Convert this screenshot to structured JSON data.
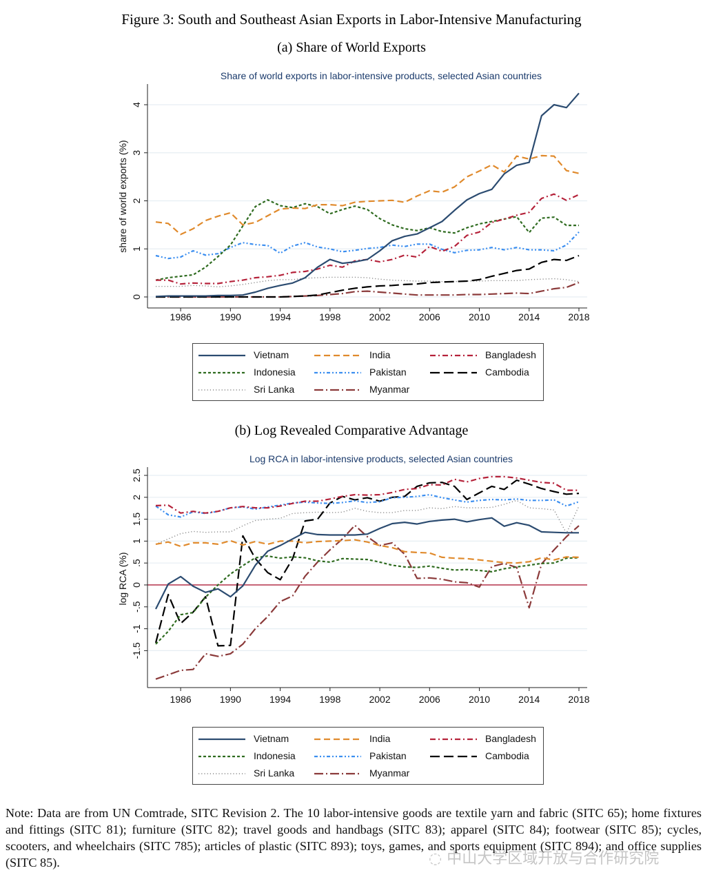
{
  "figure_title": "Figure 3: South and Southeast Asian Exports in Labor-Intensive Manufacturing",
  "panels": {
    "a": {
      "caption": "(a) Share of World Exports"
    },
    "b": {
      "caption": "(b) Log Revealed Comparative Advantage"
    }
  },
  "series_styles": {
    "Vietnam": {
      "color": "#2b4b70",
      "dash": "solid"
    },
    "India": {
      "color": "#e08a2c",
      "dash": "dash"
    },
    "Bangladesh": {
      "color": "#b5223a",
      "dash": "dashdot"
    },
    "Indonesia": {
      "color": "#2e6b1f",
      "dash": "shortdash"
    },
    "Pakistan": {
      "color": "#3b8ef0",
      "dash": "dashdotdot"
    },
    "Cambodia": {
      "color": "#000000",
      "dash": "longdash"
    },
    "Sri Lanka": {
      "color": "#888888",
      "dash": "dot"
    },
    "Myanmar": {
      "color": "#8b3a3a",
      "dash": "longdashdot"
    }
  },
  "legend_order": [
    "Vietnam",
    "India",
    "Bangladesh",
    "Indonesia",
    "Pakistan",
    "Cambodia",
    "Sri Lanka",
    "Myanmar"
  ],
  "note": "Note: Data are from UN Comtrade, SITC Revision 2. The 10 labor-intensive goods are textile yarn and fabric (SITC 65); home fixtures and fittings (SITC 81); furniture (SITC 82); travel goods and handbags (SITC 83); apparel (SITC 84); footwear (SITC 85); cycles, scooters, and wheelchairs (SITC 785); articles of plastic (SITC 893); toys, games, and sports equipment (SITC 894); and office supplies (SITC 85).",
  "watermark": "中山大学区域开放与合作研究院",
  "chart_data": [
    {
      "type": "line",
      "title": "Share of world exports in labor-intensive products, selected Asian countries",
      "xlabel": "",
      "ylabel": "share of world exports (%)",
      "x": [
        1984,
        1985,
        1986,
        1987,
        1988,
        1989,
        1990,
        1991,
        1992,
        1993,
        1994,
        1995,
        1996,
        1997,
        1998,
        1999,
        2000,
        2001,
        2002,
        2003,
        2004,
        2005,
        2006,
        2007,
        2008,
        2009,
        2010,
        2011,
        2012,
        2013,
        2014,
        2015,
        2016,
        2017,
        2018
      ],
      "xticks": [
        1986,
        1990,
        1994,
        1998,
        2002,
        2006,
        2010,
        2014,
        2018
      ],
      "yticks": [
        0,
        1,
        2,
        3,
        4
      ],
      "ylim": [
        -0.1,
        4.4
      ],
      "xlim": [
        1983.3,
        2018.6
      ],
      "grid": true,
      "legend_position": "bottom",
      "series": [
        {
          "name": "Vietnam",
          "values": [
            0.01,
            0.02,
            0.02,
            0.02,
            0.02,
            0.03,
            0.03,
            0.04,
            0.1,
            0.18,
            0.24,
            0.29,
            0.4,
            0.62,
            0.78,
            0.7,
            0.73,
            0.78,
            0.96,
            1.17,
            1.26,
            1.31,
            1.44,
            1.57,
            1.8,
            2.02,
            2.15,
            2.24,
            2.56,
            2.74,
            2.8,
            3.77,
            4.0,
            3.94,
            4.24
          ]
        },
        {
          "name": "India",
          "values": [
            1.56,
            1.53,
            1.3,
            1.42,
            1.59,
            1.68,
            1.75,
            1.5,
            1.55,
            1.69,
            1.83,
            1.85,
            1.84,
            1.92,
            1.92,
            1.9,
            1.97,
            1.99,
            2.0,
            2.01,
            1.97,
            2.1,
            2.21,
            2.18,
            2.29,
            2.5,
            2.62,
            2.75,
            2.6,
            2.93,
            2.87,
            2.94,
            2.93,
            2.63,
            2.57
          ]
        },
        {
          "name": "Bangladesh",
          "values": [
            0.35,
            0.35,
            0.27,
            0.29,
            0.28,
            0.28,
            0.32,
            0.35,
            0.4,
            0.42,
            0.45,
            0.51,
            0.53,
            0.58,
            0.66,
            0.62,
            0.75,
            0.78,
            0.73,
            0.78,
            0.87,
            0.83,
            1.05,
            0.95,
            1.05,
            1.28,
            1.35,
            1.55,
            1.62,
            1.7,
            1.76,
            2.05,
            2.14,
            2.01,
            2.13
          ]
        },
        {
          "name": "Indonesia",
          "values": [
            0.35,
            0.4,
            0.43,
            0.46,
            0.62,
            0.84,
            1.08,
            1.48,
            1.88,
            2.02,
            1.9,
            1.86,
            1.94,
            1.88,
            1.73,
            1.82,
            1.89,
            1.82,
            1.63,
            1.5,
            1.42,
            1.38,
            1.44,
            1.36,
            1.33,
            1.44,
            1.52,
            1.57,
            1.62,
            1.67,
            1.34,
            1.64,
            1.66,
            1.49,
            1.49
          ]
        },
        {
          "name": "Pakistan",
          "values": [
            0.86,
            0.8,
            0.83,
            0.96,
            0.87,
            0.9,
            1.03,
            1.13,
            1.09,
            1.07,
            0.91,
            1.06,
            1.13,
            1.04,
            1.0,
            0.94,
            0.97,
            1.01,
            1.03,
            1.08,
            1.05,
            1.1,
            1.1,
            0.99,
            0.92,
            0.97,
            0.98,
            1.03,
            0.98,
            1.03,
            0.98,
            0.98,
            0.96,
            1.08,
            1.35
          ]
        },
        {
          "name": "Cambodia",
          "values": [
            0.0,
            0.0,
            0.0,
            0.0,
            0.0,
            0.0,
            0.0,
            0.0,
            0.0,
            0.0,
            0.0,
            0.01,
            0.02,
            0.04,
            0.09,
            0.14,
            0.18,
            0.21,
            0.23,
            0.24,
            0.26,
            0.27,
            0.3,
            0.31,
            0.32,
            0.33,
            0.36,
            0.43,
            0.49,
            0.55,
            0.58,
            0.72,
            0.78,
            0.76,
            0.86
          ]
        },
        {
          "name": "Sri Lanka",
          "values": [
            0.22,
            0.22,
            0.22,
            0.24,
            0.23,
            0.21,
            0.23,
            0.26,
            0.3,
            0.34,
            0.36,
            0.36,
            0.39,
            0.4,
            0.41,
            0.41,
            0.41,
            0.4,
            0.37,
            0.35,
            0.34,
            0.33,
            0.33,
            0.32,
            0.32,
            0.33,
            0.33,
            0.34,
            0.34,
            0.34,
            0.36,
            0.37,
            0.38,
            0.36,
            0.32
          ]
        },
        {
          "name": "Myanmar",
          "values": [
            0.0,
            0.0,
            0.0,
            0.0,
            0.0,
            0.0,
            0.0,
            0.0,
            0.0,
            0.0,
            0.0,
            0.01,
            0.02,
            0.03,
            0.05,
            0.07,
            0.11,
            0.12,
            0.1,
            0.08,
            0.06,
            0.04,
            0.04,
            0.04,
            0.04,
            0.05,
            0.05,
            0.06,
            0.07,
            0.08,
            0.07,
            0.12,
            0.17,
            0.2,
            0.3
          ]
        }
      ]
    },
    {
      "type": "line",
      "title": "Log RCA in labor-intensive products, selected Asian countries",
      "xlabel": "",
      "ylabel": "log RCA (%)",
      "x": [
        1984,
        1985,
        1986,
        1987,
        1988,
        1989,
        1990,
        1991,
        1992,
        1993,
        1994,
        1995,
        1996,
        1997,
        1998,
        1999,
        2000,
        2001,
        2002,
        2003,
        2004,
        2005,
        2006,
        2007,
        2008,
        2009,
        2010,
        2011,
        2012,
        2013,
        2014,
        2015,
        2016,
        2017,
        2018
      ],
      "xticks": [
        1986,
        1990,
        1994,
        1998,
        2002,
        2006,
        2010,
        2014,
        2018
      ],
      "yticks": [
        -1.5,
        -1,
        -0.5,
        0,
        0.5,
        1,
        1.5,
        2,
        2.5
      ],
      "ytick_labels": [
        "-1.5",
        "-1",
        "-.5",
        "0",
        ".5",
        "1",
        "1.5",
        "2",
        "2.5"
      ],
      "ylim": [
        -2.35,
        2.7
      ],
      "xlim": [
        1983.3,
        2018.6
      ],
      "grid": true,
      "reference_line": {
        "y": 0,
        "color": "#b5334a"
      },
      "legend_position": "bottom",
      "series": [
        {
          "name": "Vietnam",
          "values": [
            -0.55,
            0.02,
            0.19,
            -0.03,
            -0.17,
            -0.09,
            -0.27,
            -0.02,
            0.45,
            0.77,
            0.9,
            1.05,
            1.2,
            1.15,
            1.14,
            1.14,
            1.14,
            1.16,
            1.29,
            1.4,
            1.43,
            1.39,
            1.45,
            1.48,
            1.5,
            1.44,
            1.49,
            1.53,
            1.34,
            1.42,
            1.36,
            1.21,
            1.2,
            1.19,
            1.19
          ]
        },
        {
          "name": "India",
          "values": [
            0.93,
            0.98,
            0.88,
            0.96,
            0.96,
            0.93,
            1.01,
            0.91,
            0.99,
            0.93,
            1.0,
            1.0,
            0.96,
            0.99,
            1.0,
            1.01,
            1.03,
            0.98,
            0.9,
            0.85,
            0.76,
            0.74,
            0.73,
            0.63,
            0.61,
            0.6,
            0.57,
            0.54,
            0.51,
            0.5,
            0.53,
            0.62,
            0.57,
            0.64,
            0.63
          ]
        },
        {
          "name": "Bangladesh",
          "values": [
            1.81,
            1.82,
            1.64,
            1.68,
            1.64,
            1.68,
            1.76,
            1.79,
            1.76,
            1.76,
            1.8,
            1.86,
            1.91,
            1.91,
            1.96,
            2.02,
            2.06,
            2.05,
            2.06,
            2.11,
            2.18,
            2.2,
            2.29,
            2.28,
            2.41,
            2.35,
            2.43,
            2.47,
            2.47,
            2.44,
            2.39,
            2.34,
            2.32,
            2.16,
            2.16
          ]
        },
        {
          "name": "Indonesia",
          "values": [
            -1.35,
            -1.06,
            -0.68,
            -0.63,
            -0.28,
            0.0,
            0.25,
            0.44,
            0.62,
            0.66,
            0.61,
            0.64,
            0.62,
            0.55,
            0.52,
            0.6,
            0.59,
            0.58,
            0.52,
            0.45,
            0.41,
            0.4,
            0.43,
            0.38,
            0.34,
            0.35,
            0.33,
            0.3,
            0.37,
            0.41,
            0.45,
            0.49,
            0.5,
            0.61,
            0.62
          ]
        },
        {
          "name": "Pakistan",
          "values": [
            1.8,
            1.6,
            1.55,
            1.67,
            1.63,
            1.68,
            1.76,
            1.78,
            1.73,
            1.78,
            1.82,
            1.87,
            1.89,
            1.87,
            1.86,
            1.88,
            1.92,
            1.88,
            1.9,
            1.99,
            2.0,
            2.02,
            2.06,
            1.99,
            1.94,
            1.89,
            1.93,
            1.95,
            1.94,
            1.96,
            1.93,
            1.93,
            1.94,
            1.8,
            1.9
          ]
        },
        {
          "name": "Cambodia",
          "values": [
            -1.32,
            -0.22,
            -0.88,
            -0.62,
            -0.27,
            -1.39,
            -1.38,
            1.12,
            0.6,
            0.28,
            0.12,
            0.6,
            1.46,
            1.5,
            1.87,
            2.02,
            1.94,
            1.99,
            1.91,
            2.0,
            2.02,
            2.25,
            2.33,
            2.34,
            2.25,
            1.95,
            2.1,
            2.25,
            2.18,
            2.39,
            2.3,
            2.2,
            2.13,
            2.07,
            2.09
          ]
        },
        {
          "name": "Sri Lanka",
          "values": [
            0.93,
            1.05,
            1.17,
            1.22,
            1.2,
            1.21,
            1.21,
            1.35,
            1.47,
            1.5,
            1.52,
            1.63,
            1.65,
            1.66,
            1.65,
            1.66,
            1.75,
            1.68,
            1.65,
            1.65,
            1.7,
            1.7,
            1.76,
            1.74,
            1.79,
            1.76,
            1.76,
            1.77,
            1.84,
            1.93,
            1.76,
            1.74,
            1.71,
            1.18,
            1.8
          ]
        },
        {
          "name": "Myanmar",
          "values": [
            -2.15,
            -2.05,
            -1.95,
            -1.93,
            -1.57,
            -1.63,
            -1.57,
            -1.35,
            -1.0,
            -0.72,
            -0.38,
            -0.25,
            0.2,
            0.52,
            0.8,
            1.05,
            1.36,
            1.1,
            0.9,
            0.96,
            0.7,
            0.15,
            0.16,
            0.13,
            0.07,
            0.05,
            -0.05,
            0.42,
            0.49,
            0.4,
            -0.52,
            0.48,
            0.8,
            1.1,
            1.35
          ]
        }
      ]
    }
  ]
}
